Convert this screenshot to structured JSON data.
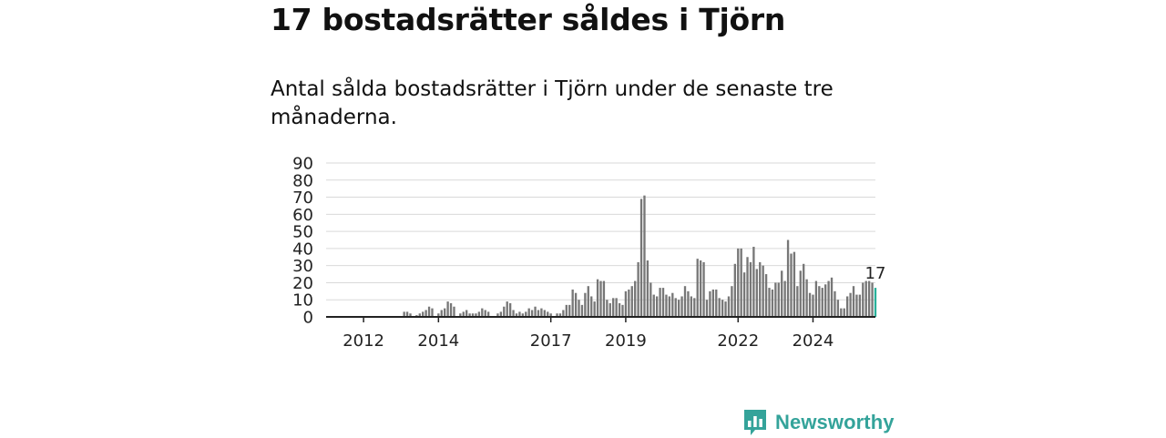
{
  "title": "17 bostadsrätter såldes i Tjörn",
  "subtitle": "Antal sålda bostadsrätter i Tjörn under de senaste tre månaderna.",
  "brand": {
    "name": "Newsworthy",
    "icon": "bar-chart-logo-icon",
    "color": "#34a39a"
  },
  "chart_data": {
    "type": "bar",
    "x_start": "2011-01",
    "x_end": "2025-09",
    "y_ticks": [
      0,
      10,
      20,
      30,
      40,
      50,
      60,
      70,
      80,
      90
    ],
    "ylim": [
      0,
      90
    ],
    "x_ticks": [
      "2012",
      "2014",
      "2017",
      "2019",
      "2022",
      "2024"
    ],
    "grid": true,
    "bar_color": "#777777",
    "highlight_color": "#28b09a",
    "highlight_label": "17",
    "values": [
      0,
      0,
      0,
      0,
      0,
      0,
      0,
      0,
      0,
      0,
      0,
      0,
      0,
      0,
      3,
      3,
      2,
      0,
      1,
      2,
      3,
      4,
      6,
      5,
      0,
      2,
      4,
      5,
      9,
      8,
      6,
      0,
      2,
      3,
      4,
      2,
      2,
      2,
      3,
      5,
      4,
      3,
      0,
      0,
      2,
      3,
      6,
      9,
      8,
      4,
      2,
      3,
      2,
      3,
      5,
      4,
      6,
      4,
      5,
      4,
      3,
      2,
      0,
      2,
      2,
      4,
      7,
      7,
      16,
      14,
      10,
      7,
      14,
      18,
      12,
      9,
      22,
      21,
      21,
      10,
      8,
      11,
      11,
      8,
      7,
      15,
      16,
      18,
      21,
      32,
      69,
      71,
      33,
      20,
      13,
      12,
      17,
      17,
      13,
      12,
      14,
      11,
      10,
      12,
      18,
      15,
      12,
      11,
      34,
      33,
      32,
      10,
      15,
      16,
      16,
      11,
      10,
      9,
      12,
      18,
      31,
      40,
      40,
      26,
      35,
      32,
      41,
      28,
      32,
      30,
      25,
      17,
      16,
      20,
      20,
      27,
      21,
      45,
      37,
      38,
      18,
      27,
      31,
      22,
      14,
      13,
      21,
      18,
      17,
      19,
      21,
      23,
      15,
      10,
      5,
      5,
      12,
      14,
      18,
      13,
      13,
      20,
      21,
      21,
      20,
      17
    ]
  }
}
